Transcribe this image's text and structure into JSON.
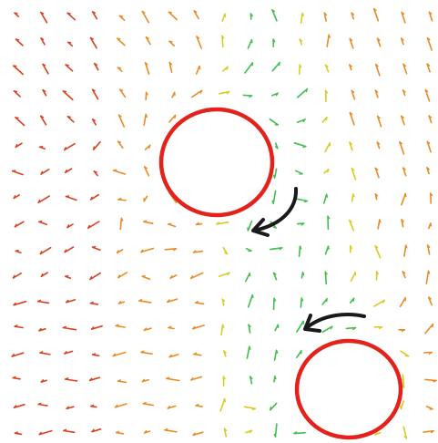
{
  "figure": {
    "kind": "vector-flow-field",
    "background_color": "#ffffff"
  },
  "palette": {
    "vector_red": "#d9401f",
    "vector_orange": "#ea8a24",
    "vector_yellow": "#d8cc22",
    "vector_green": "#3fbf4a",
    "obstacle_outline": "#e3221c",
    "annotation_arrow": "#1a1a1a"
  },
  "obstacles": [
    {
      "id": "upper-obstacle",
      "shape": "circle"
    },
    {
      "id": "lower-obstacle",
      "shape": "circle"
    }
  ],
  "annotations": [
    {
      "id": "upper-flow-arrow",
      "icon": "curved-arrow-icon",
      "points_toward": "left-down"
    },
    {
      "id": "lower-flow-arrow",
      "icon": "curved-arrow-icon",
      "points_toward": "left"
    }
  ],
  "field": {
    "description_colors": [
      "red",
      "orange",
      "yellow",
      "green"
    ],
    "grid_rows": 17,
    "grid_cols": 17
  }
}
